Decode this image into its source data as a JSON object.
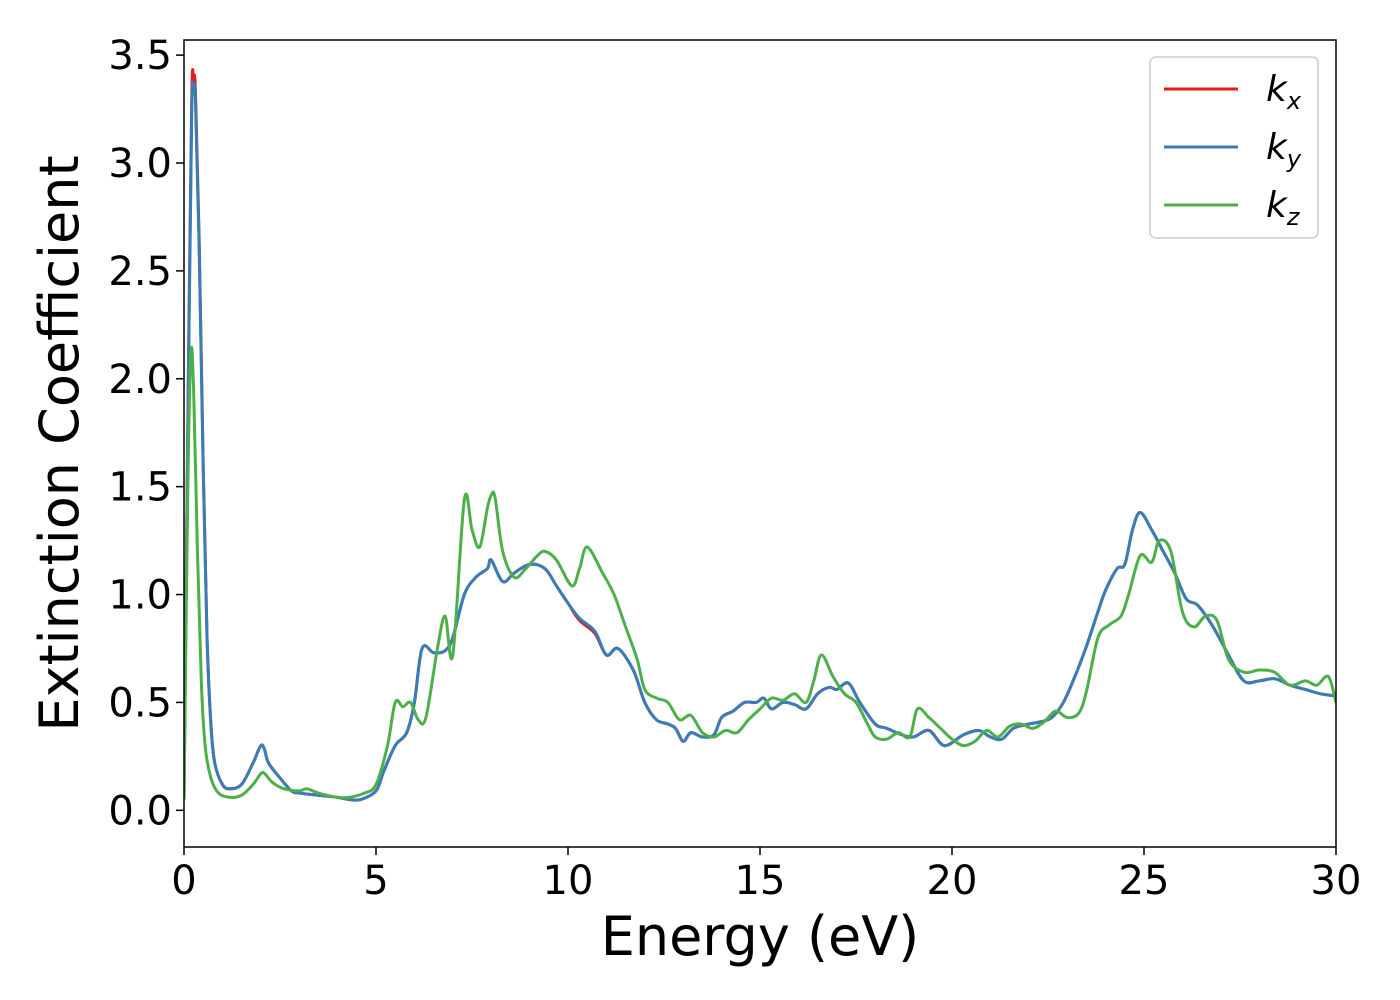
{
  "chart_data": {
    "type": "line",
    "xlabel": "Energy (eV)",
    "ylabel": "Extinction Coefficient",
    "xlim": [
      0,
      30
    ],
    "ylim": [
      -0.17,
      3.57
    ],
    "xticks": [
      0,
      5,
      10,
      15,
      20,
      25,
      30
    ],
    "yticks": [
      0.0,
      0.5,
      1.0,
      1.5,
      2.0,
      2.5,
      3.0,
      3.5
    ],
    "grid": false,
    "legend_position": "top-right",
    "series": [
      {
        "name": "k",
        "subscript": "x",
        "color": "#e41a1c",
        "x": [
          0,
          0.1,
          0.2,
          0.25,
          0.3,
          0.4,
          0.5,
          0.6,
          0.7,
          0.8,
          1.0,
          1.2,
          1.5,
          1.8,
          2.0,
          2.1,
          2.2,
          2.5,
          2.8,
          3.0,
          3.5,
          4.0,
          4.3,
          4.6,
          5.0,
          5.2,
          5.5,
          5.8,
          6.0,
          6.2,
          6.5,
          6.8,
          7.0,
          7.3,
          7.6,
          7.9,
          8.0,
          8.3,
          8.6,
          9.0,
          9.4,
          9.7,
          10.0,
          10.3,
          10.7,
          11.0,
          11.3,
          11.7,
          12.0,
          12.3,
          12.6,
          12.8,
          13.0,
          13.2,
          13.5,
          13.8,
          14.0,
          14.3,
          14.6,
          14.9,
          15.1,
          15.3,
          15.6,
          15.9,
          16.2,
          16.5,
          16.8,
          17.0,
          17.3,
          17.6,
          18.0,
          18.3,
          18.7,
          19.0,
          19.4,
          19.8,
          20.3,
          20.7,
          21.0,
          21.3,
          21.6,
          22.0,
          22.3,
          22.6,
          22.9,
          23.2,
          23.5,
          23.8,
          24.0,
          24.3,
          24.5,
          24.7,
          24.9,
          25.2,
          25.5,
          25.8,
          26.1,
          26.4,
          26.8,
          27.2,
          27.6,
          28.0,
          28.4,
          28.8,
          29.2,
          29.6,
          30.0
        ],
        "y": [
          0.05,
          1.8,
          3.28,
          3.39,
          3.32,
          2.6,
          1.6,
          0.8,
          0.4,
          0.22,
          0.12,
          0.1,
          0.12,
          0.22,
          0.3,
          0.28,
          0.22,
          0.15,
          0.09,
          0.08,
          0.07,
          0.06,
          0.05,
          0.05,
          0.09,
          0.18,
          0.3,
          0.36,
          0.5,
          0.75,
          0.73,
          0.74,
          0.8,
          1.0,
          1.08,
          1.12,
          1.16,
          1.06,
          1.1,
          1.14,
          1.12,
          1.04,
          0.96,
          0.88,
          0.82,
          0.72,
          0.75,
          0.65,
          0.5,
          0.42,
          0.4,
          0.38,
          0.32,
          0.36,
          0.34,
          0.35,
          0.43,
          0.46,
          0.5,
          0.5,
          0.52,
          0.47,
          0.5,
          0.49,
          0.47,
          0.54,
          0.57,
          0.56,
          0.59,
          0.5,
          0.4,
          0.38,
          0.35,
          0.34,
          0.37,
          0.3,
          0.35,
          0.37,
          0.34,
          0.33,
          0.38,
          0.4,
          0.41,
          0.43,
          0.5,
          0.62,
          0.76,
          0.92,
          1.02,
          1.12,
          1.14,
          1.3,
          1.38,
          1.3,
          1.2,
          1.1,
          0.98,
          0.95,
          0.85,
          0.72,
          0.6,
          0.6,
          0.61,
          0.58,
          0.56,
          0.54,
          0.53
        ]
      },
      {
        "name": "k",
        "subscript": "y",
        "color": "#377eb8",
        "x": [
          0,
          0.1,
          0.2,
          0.25,
          0.3,
          0.4,
          0.5,
          0.6,
          0.7,
          0.8,
          1.0,
          1.2,
          1.5,
          1.8,
          2.0,
          2.1,
          2.2,
          2.5,
          2.8,
          3.0,
          3.5,
          4.0,
          4.3,
          4.6,
          5.0,
          5.2,
          5.5,
          5.8,
          6.0,
          6.2,
          6.5,
          6.8,
          7.0,
          7.3,
          7.6,
          7.9,
          8.0,
          8.3,
          8.6,
          9.0,
          9.4,
          9.7,
          10.0,
          10.3,
          10.7,
          11.0,
          11.3,
          11.7,
          12.0,
          12.3,
          12.6,
          12.8,
          13.0,
          13.2,
          13.5,
          13.8,
          14.0,
          14.3,
          14.6,
          14.9,
          15.1,
          15.3,
          15.6,
          15.9,
          16.2,
          16.5,
          16.8,
          17.0,
          17.3,
          17.6,
          18.0,
          18.3,
          18.7,
          19.0,
          19.4,
          19.8,
          20.3,
          20.7,
          21.0,
          21.3,
          21.6,
          22.0,
          22.3,
          22.6,
          22.9,
          23.2,
          23.5,
          23.8,
          24.0,
          24.3,
          24.5,
          24.7,
          24.9,
          25.2,
          25.5,
          25.8,
          26.1,
          26.4,
          26.8,
          27.2,
          27.6,
          28.0,
          28.4,
          28.8,
          29.2,
          29.6,
          30.0
        ],
        "y": [
          0.05,
          1.75,
          3.22,
          3.34,
          3.28,
          2.55,
          1.58,
          0.8,
          0.4,
          0.22,
          0.12,
          0.1,
          0.12,
          0.22,
          0.3,
          0.28,
          0.22,
          0.15,
          0.09,
          0.08,
          0.07,
          0.06,
          0.05,
          0.05,
          0.09,
          0.18,
          0.3,
          0.36,
          0.5,
          0.75,
          0.73,
          0.74,
          0.8,
          1.0,
          1.08,
          1.12,
          1.16,
          1.06,
          1.1,
          1.14,
          1.12,
          1.04,
          0.96,
          0.89,
          0.83,
          0.72,
          0.75,
          0.65,
          0.5,
          0.42,
          0.4,
          0.38,
          0.32,
          0.36,
          0.34,
          0.35,
          0.43,
          0.46,
          0.5,
          0.5,
          0.52,
          0.47,
          0.5,
          0.49,
          0.47,
          0.54,
          0.57,
          0.56,
          0.59,
          0.5,
          0.4,
          0.38,
          0.35,
          0.34,
          0.37,
          0.3,
          0.35,
          0.37,
          0.34,
          0.33,
          0.38,
          0.4,
          0.41,
          0.43,
          0.5,
          0.62,
          0.76,
          0.92,
          1.02,
          1.12,
          1.14,
          1.3,
          1.38,
          1.3,
          1.2,
          1.1,
          0.98,
          0.95,
          0.85,
          0.72,
          0.6,
          0.6,
          0.61,
          0.58,
          0.56,
          0.54,
          0.53
        ]
      },
      {
        "name": "k",
        "subscript": "z",
        "color": "#4daf4a",
        "x": [
          0,
          0.1,
          0.18,
          0.25,
          0.35,
          0.45,
          0.55,
          0.7,
          0.9,
          1.2,
          1.5,
          1.8,
          2.0,
          2.1,
          2.3,
          2.6,
          3.0,
          3.2,
          3.5,
          4.0,
          4.3,
          4.7,
          5.0,
          5.3,
          5.5,
          5.7,
          5.9,
          6.1,
          6.3,
          6.6,
          6.8,
          7.0,
          7.3,
          7.5,
          7.7,
          7.9,
          8.0,
          8.1,
          8.3,
          8.6,
          8.9,
          9.2,
          9.4,
          9.7,
          10.1,
          10.3,
          10.5,
          10.9,
          11.2,
          11.5,
          11.8,
          12.0,
          12.3,
          12.6,
          12.9,
          13.2,
          13.5,
          13.8,
          14.1,
          14.4,
          14.7,
          15.0,
          15.3,
          15.6,
          15.9,
          16.2,
          16.4,
          16.6,
          16.9,
          17.2,
          17.5,
          17.8,
          18.0,
          18.3,
          18.6,
          18.9,
          19.1,
          19.4,
          19.7,
          20.0,
          20.3,
          20.6,
          20.9,
          21.2,
          21.5,
          21.8,
          22.1,
          22.4,
          22.7,
          23.0,
          23.3,
          23.5,
          23.8,
          24.1,
          24.4,
          24.6,
          24.9,
          25.2,
          25.4,
          25.7,
          26.0,
          26.3,
          26.6,
          26.9,
          27.2,
          27.6,
          28.0,
          28.4,
          28.8,
          29.2,
          29.5,
          29.8,
          30.0
        ],
        "y": [
          0.05,
          1.5,
          2.12,
          1.95,
          1.2,
          0.6,
          0.3,
          0.15,
          0.08,
          0.06,
          0.07,
          0.12,
          0.17,
          0.17,
          0.13,
          0.1,
          0.09,
          0.1,
          0.08,
          0.06,
          0.06,
          0.08,
          0.12,
          0.3,
          0.5,
          0.48,
          0.5,
          0.42,
          0.43,
          0.75,
          0.9,
          0.72,
          1.44,
          1.3,
          1.22,
          1.4,
          1.46,
          1.45,
          1.2,
          1.08,
          1.12,
          1.18,
          1.2,
          1.16,
          1.04,
          1.12,
          1.22,
          1.1,
          1.0,
          0.85,
          0.7,
          0.56,
          0.52,
          0.5,
          0.42,
          0.44,
          0.36,
          0.34,
          0.37,
          0.36,
          0.42,
          0.47,
          0.52,
          0.51,
          0.54,
          0.5,
          0.6,
          0.72,
          0.62,
          0.54,
          0.5,
          0.4,
          0.34,
          0.33,
          0.36,
          0.34,
          0.47,
          0.43,
          0.38,
          0.33,
          0.3,
          0.32,
          0.37,
          0.34,
          0.39,
          0.4,
          0.38,
          0.41,
          0.46,
          0.43,
          0.45,
          0.55,
          0.8,
          0.86,
          0.9,
          1.0,
          1.18,
          1.15,
          1.25,
          1.2,
          0.92,
          0.85,
          0.9,
          0.88,
          0.7,
          0.64,
          0.65,
          0.64,
          0.58,
          0.6,
          0.58,
          0.62,
          0.5
        ]
      }
    ]
  }
}
